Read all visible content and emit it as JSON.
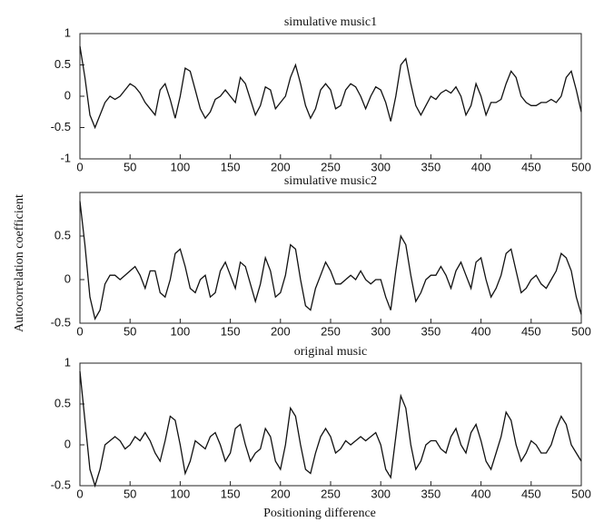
{
  "figure": {
    "ylabel": "Autocorrelation coefficient",
    "xlabel": "Positioning difference"
  },
  "chart_data": [
    {
      "type": "line",
      "title": "simulative music1",
      "x": [
        0,
        5,
        10,
        15,
        20,
        25,
        30,
        35,
        40,
        45,
        50,
        55,
        60,
        65,
        70,
        75,
        80,
        85,
        90,
        95,
        100,
        105,
        110,
        115,
        120,
        125,
        130,
        135,
        140,
        145,
        150,
        155,
        160,
        165,
        170,
        175,
        180,
        185,
        190,
        195,
        200,
        205,
        210,
        215,
        220,
        225,
        230,
        235,
        240,
        245,
        250,
        255,
        260,
        265,
        270,
        275,
        280,
        285,
        290,
        295,
        300,
        305,
        310,
        315,
        320,
        325,
        330,
        335,
        340,
        345,
        350,
        355,
        360,
        365,
        370,
        375,
        380,
        385,
        390,
        395,
        400,
        405,
        410,
        415,
        420,
        425,
        430,
        435,
        440,
        445,
        450,
        455,
        460,
        465,
        470,
        475,
        480,
        485,
        490,
        495,
        500
      ],
      "values": [
        0.8,
        0.3,
        -0.3,
        -0.5,
        -0.3,
        -0.1,
        0,
        -0.05,
        0,
        0.1,
        0.2,
        0.15,
        0.05,
        -0.1,
        -0.2,
        -0.3,
        0.1,
        0.2,
        -0.05,
        -0.35,
        0,
        0.45,
        0.4,
        0.1,
        -0.2,
        -0.35,
        -0.25,
        -0.05,
        0,
        0.1,
        0,
        -0.1,
        0.3,
        0.2,
        -0.05,
        -0.3,
        -0.15,
        0.15,
        0.1,
        -0.2,
        -0.1,
        0,
        0.3,
        0.5,
        0.2,
        -0.15,
        -0.35,
        -0.2,
        0.1,
        0.2,
        0.1,
        -0.2,
        -0.15,
        0.1,
        0.2,
        0.15,
        0,
        -0.2,
        0,
        0.15,
        0.1,
        -0.1,
        -0.4,
        0,
        0.5,
        0.6,
        0.2,
        -0.15,
        -0.3,
        -0.15,
        0,
        -0.05,
        0.05,
        0.1,
        0.05,
        0.15,
        0,
        -0.3,
        -0.15,
        0.2,
        0,
        -0.3,
        -0.1,
        -0.1,
        -0.05,
        0.2,
        0.4,
        0.3,
        0,
        -0.1,
        -0.15,
        -0.15,
        -0.1,
        -0.1,
        -0.05,
        -0.1,
        0,
        0.3,
        0.4,
        0.1,
        -0.25
      ],
      "color": "#111111",
      "xlim": [
        0,
        500
      ],
      "xticks": [
        0,
        50,
        100,
        150,
        200,
        250,
        300,
        350,
        400,
        450,
        500
      ],
      "ylim": [
        -1,
        1
      ],
      "yticks": [
        -1,
        -0.5,
        0,
        0.5,
        1
      ]
    },
    {
      "type": "line",
      "title": "simulative music2",
      "x": [
        0,
        5,
        10,
        15,
        20,
        25,
        30,
        35,
        40,
        45,
        50,
        55,
        60,
        65,
        70,
        75,
        80,
        85,
        90,
        95,
        100,
        105,
        110,
        115,
        120,
        125,
        130,
        135,
        140,
        145,
        150,
        155,
        160,
        165,
        170,
        175,
        180,
        185,
        190,
        195,
        200,
        205,
        210,
        215,
        220,
        225,
        230,
        235,
        240,
        245,
        250,
        255,
        260,
        265,
        270,
        275,
        280,
        285,
        290,
        295,
        300,
        305,
        310,
        315,
        320,
        325,
        330,
        335,
        340,
        345,
        350,
        355,
        360,
        365,
        370,
        375,
        380,
        385,
        390,
        395,
        400,
        405,
        410,
        415,
        420,
        425,
        430,
        435,
        440,
        445,
        450,
        455,
        460,
        465,
        470,
        475,
        480,
        485,
        490,
        495,
        500
      ],
      "values": [
        0.9,
        0.4,
        -0.2,
        -0.45,
        -0.35,
        -0.05,
        0.05,
        0.05,
        0,
        0.05,
        0.1,
        0.15,
        0.05,
        -0.1,
        0.1,
        0.1,
        -0.15,
        -0.2,
        0,
        0.3,
        0.35,
        0.15,
        -0.1,
        -0.15,
        0,
        0.05,
        -0.2,
        -0.15,
        0.1,
        0.2,
        0.05,
        -0.1,
        0.2,
        0.15,
        -0.05,
        -0.25,
        -0.05,
        0.25,
        0.1,
        -0.2,
        -0.15,
        0.05,
        0.4,
        0.35,
        0,
        -0.3,
        -0.35,
        -0.1,
        0.05,
        0.2,
        0.1,
        -0.05,
        -0.05,
        0,
        0.05,
        0,
        0.1,
        0,
        -0.05,
        0,
        0,
        -0.2,
        -0.35,
        0.1,
        0.5,
        0.4,
        0.05,
        -0.25,
        -0.15,
        0,
        0.05,
        0.05,
        0.15,
        0.05,
        -0.1,
        0.1,
        0.2,
        0.05,
        -0.1,
        0.2,
        0.25,
        0,
        -0.2,
        -0.1,
        0.05,
        0.3,
        0.35,
        0.1,
        -0.15,
        -0.1,
        0,
        0.05,
        -0.05,
        -0.1,
        0,
        0.1,
        0.3,
        0.25,
        0.1,
        -0.2,
        -0.4
      ],
      "color": "#111111",
      "xlim": [
        0,
        500
      ],
      "xticks": [
        0,
        50,
        100,
        150,
        200,
        250,
        300,
        350,
        400,
        450,
        500
      ],
      "ylim": [
        -0.5,
        1
      ],
      "yticks": [
        -0.5,
        0,
        0.5
      ]
    },
    {
      "type": "line",
      "title": "original music",
      "x": [
        0,
        5,
        10,
        15,
        20,
        25,
        30,
        35,
        40,
        45,
        50,
        55,
        60,
        65,
        70,
        75,
        80,
        85,
        90,
        95,
        100,
        105,
        110,
        115,
        120,
        125,
        130,
        135,
        140,
        145,
        150,
        155,
        160,
        165,
        170,
        175,
        180,
        185,
        190,
        195,
        200,
        205,
        210,
        215,
        220,
        225,
        230,
        235,
        240,
        245,
        250,
        255,
        260,
        265,
        270,
        275,
        280,
        285,
        290,
        295,
        300,
        305,
        310,
        315,
        320,
        325,
        330,
        335,
        340,
        345,
        350,
        355,
        360,
        365,
        370,
        375,
        380,
        385,
        390,
        395,
        400,
        405,
        410,
        415,
        420,
        425,
        430,
        435,
        440,
        445,
        450,
        455,
        460,
        465,
        470,
        475,
        480,
        485,
        490,
        495,
        500
      ],
      "values": [
        0.9,
        0.3,
        -0.3,
        -0.5,
        -0.3,
        0,
        0.05,
        0.1,
        0.05,
        -0.05,
        0,
        0.1,
        0.05,
        0.15,
        0.05,
        -0.1,
        -0.2,
        0.05,
        0.35,
        0.3,
        0,
        -0.35,
        -0.2,
        0.05,
        0,
        -0.05,
        0.1,
        0.15,
        0,
        -0.2,
        -0.1,
        0.2,
        0.25,
        0,
        -0.2,
        -0.1,
        -0.05,
        0.2,
        0.1,
        -0.2,
        -0.3,
        0,
        0.45,
        0.35,
        0,
        -0.3,
        -0.35,
        -0.1,
        0.1,
        0.2,
        0.1,
        -0.1,
        -0.05,
        0.05,
        0,
        0.05,
        0.1,
        0.05,
        0.1,
        0.15,
        0,
        -0.3,
        -0.4,
        0.1,
        0.6,
        0.45,
        0,
        -0.3,
        -0.2,
        0,
        0.05,
        0.05,
        -0.05,
        -0.1,
        0.1,
        0.2,
        0,
        -0.1,
        0.15,
        0.25,
        0.05,
        -0.2,
        -0.3,
        -0.1,
        0.1,
        0.4,
        0.3,
        0,
        -0.2,
        -0.1,
        0.05,
        0,
        -0.1,
        -0.1,
        0,
        0.2,
        0.35,
        0.25,
        0,
        -0.1,
        -0.2
      ],
      "color": "#111111",
      "xlim": [
        0,
        500
      ],
      "xticks": [
        0,
        50,
        100,
        150,
        200,
        250,
        300,
        350,
        400,
        450,
        500
      ],
      "ylim": [
        -0.5,
        1
      ],
      "yticks": [
        -0.5,
        0,
        0.5,
        1
      ]
    }
  ]
}
